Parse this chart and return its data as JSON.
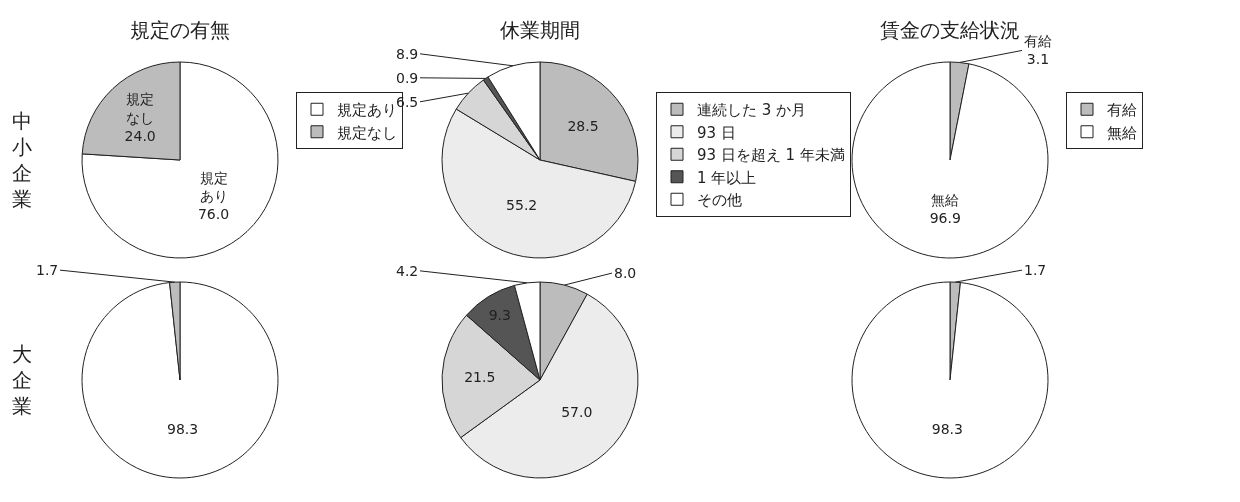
{
  "chart_data": [
    {
      "type": "pie",
      "title": "規定の有無",
      "ylabel": "中小企業",
      "categories": [
        "規定あり",
        "規定なし"
      ],
      "values": [
        76.0,
        24.0
      ],
      "value_labels": [
        "規定あり76.0",
        "規定なし24.0"
      ],
      "colors": [
        "#ffffff",
        "#bcbcbc"
      ],
      "legend": "right"
    },
    {
      "type": "pie",
      "title": "休業期間",
      "categories": [
        "連続した 3 か月",
        "93 日",
        "93 日を超え 1 年未満",
        "1 年以上",
        "その他"
      ],
      "values": [
        28.5,
        55.2,
        6.5,
        0.9,
        8.9
      ],
      "value_labels": [
        "28.5",
        "55.2",
        "6.5",
        "0.9",
        "8.9"
      ],
      "colors": [
        "#bcbcbc",
        "#ececec",
        "#d6d6d6",
        "#555555",
        "#ffffff"
      ],
      "legend": "right"
    },
    {
      "type": "pie",
      "title": "賃金の支給状況",
      "categories": [
        "有給",
        "無給"
      ],
      "values": [
        3.1,
        96.9
      ],
      "value_labels": [
        "有給3.1",
        "無給96.9"
      ],
      "colors": [
        "#bcbcbc",
        "#ffffff"
      ],
      "legend": "right"
    },
    {
      "type": "pie",
      "ylabel": "大企業",
      "categories": [
        null,
        null
      ],
      "values": [
        98.3,
        1.7
      ],
      "value_labels": [
        "98.3",
        "1.7"
      ],
      "colors": [
        "#ffffff",
        "#bcbcbc"
      ]
    },
    {
      "type": "pie",
      "categories": [
        null,
        null,
        null,
        null,
        null
      ],
      "values": [
        8.0,
        57.0,
        21.5,
        9.3,
        4.2
      ],
      "value_labels": [
        "8.0",
        "57.0",
        "21.5",
        "9.3",
        "4.2"
      ],
      "colors": [
        "#bcbcbc",
        "#ececec",
        "#d6d6d6",
        "#555555",
        "#ffffff"
      ]
    },
    {
      "type": "pie",
      "categories": [
        null,
        null
      ],
      "values": [
        1.7,
        98.3
      ],
      "value_labels": [
        "1.7",
        "98.3"
      ],
      "colors": [
        "#bcbcbc",
        "#ffffff"
      ]
    }
  ]
}
